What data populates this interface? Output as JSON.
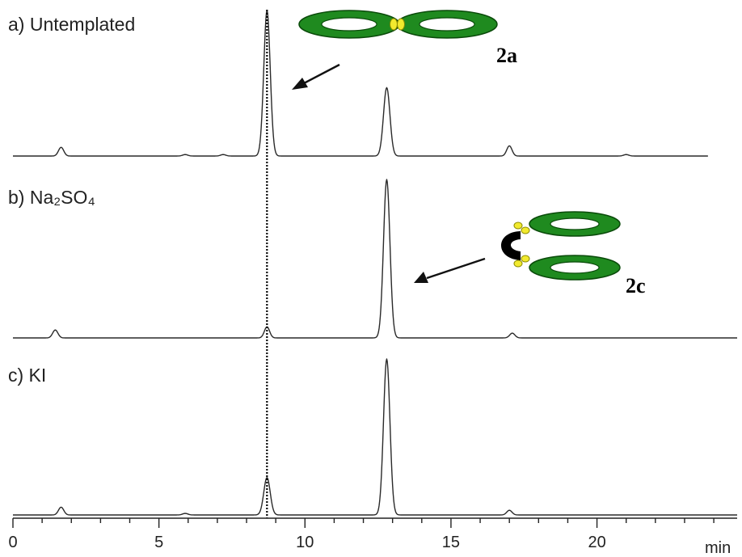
{
  "chart_data": {
    "type": "line",
    "panels": [
      {
        "label": "a) Untemplated",
        "series": [
          {
            "x": [],
            "y": []
          }
        ]
      },
      {
        "label": "b) Na₂SO₄",
        "series": [
          {
            "x": [],
            "y": []
          }
        ]
      },
      {
        "label": "c) KI",
        "series": [
          {
            "x": [],
            "y": []
          }
        ]
      }
    ],
    "x_ticks": [
      "0",
      "5",
      "10",
      "15",
      "20"
    ],
    "x_unit": "min",
    "xlim": [
      0,
      24.8
    ],
    "marker_time": 8.7,
    "annotations": [
      {
        "text": "2a",
        "points_to_min": 8.7,
        "panel": "a) Untemplated"
      },
      {
        "text": "2c",
        "points_to_min": 12.8,
        "panel": "b) Na₂SO₄"
      }
    ],
    "peaks_relative_height": {
      "a) Untemplated": [
        {
          "t": 1.65,
          "h": 0.06
        },
        {
          "t": 5.9,
          "h": 0.01
        },
        {
          "t": 7.2,
          "h": 0.01
        },
        {
          "t": 8.7,
          "h": 1.0
        },
        {
          "t": 12.8,
          "h": 0.47
        },
        {
          "t": 17.0,
          "h": 0.07
        },
        {
          "t": 21.0,
          "h": 0.01
        }
      ],
      "b) Na₂SO₄": [
        {
          "t": 1.45,
          "h": 0.05
        },
        {
          "t": 8.7,
          "h": 0.07
        },
        {
          "t": 12.8,
          "h": 1.0
        },
        {
          "t": 17.1,
          "h": 0.03
        }
      ],
      "c) KI": [
        {
          "t": 1.65,
          "h": 0.05
        },
        {
          "t": 5.9,
          "h": 0.01
        },
        {
          "t": 8.7,
          "h": 0.24
        },
        {
          "t": 12.8,
          "h": 1.0
        },
        {
          "t": 17.0,
          "h": 0.03
        }
      ]
    },
    "grid": false,
    "colors": {
      "trace": "#2a2a2a",
      "ring_fill": "#1f8a1f",
      "ring_stroke": "#0a4a0a",
      "bead_fill": "#f2ea2e",
      "linker_fill": "#000000"
    }
  }
}
